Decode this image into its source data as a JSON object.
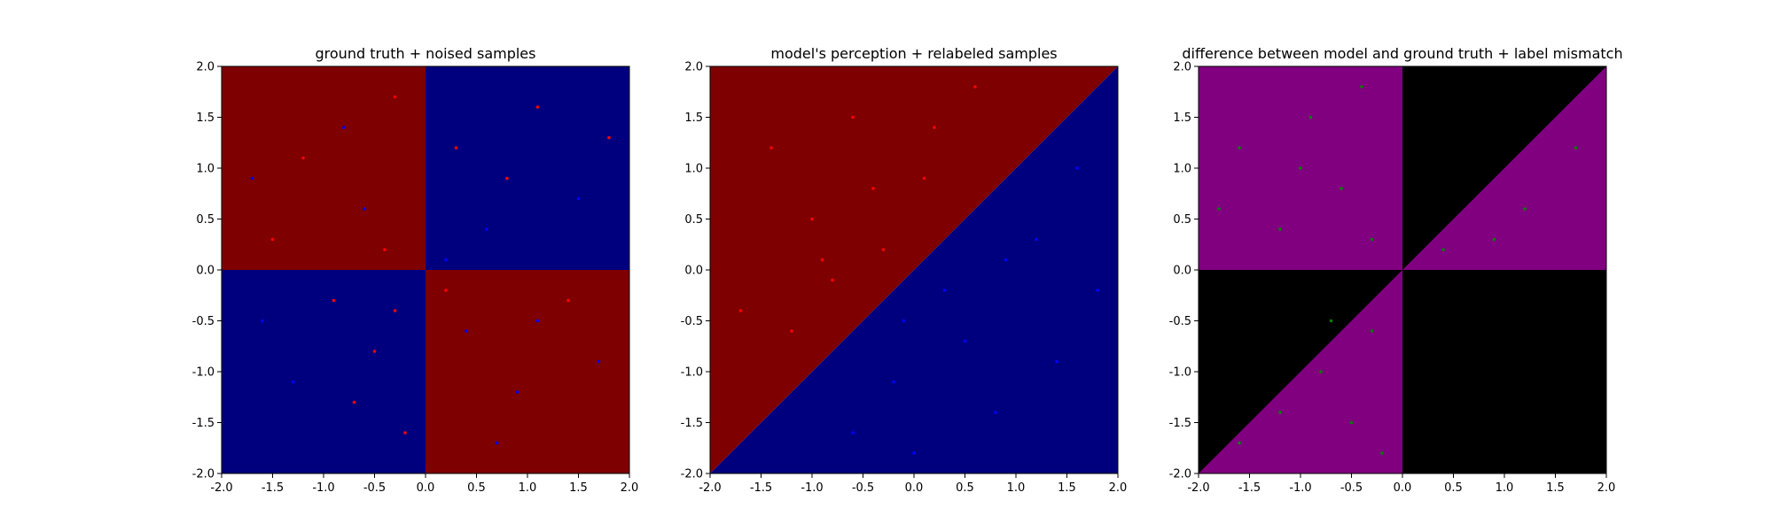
{
  "chart_data": [
    {
      "type": "heatmap",
      "title": "ground truth + noised samples",
      "xlim": [
        -2.0,
        2.0
      ],
      "ylim": [
        -2.0,
        2.0
      ],
      "xticks": [
        "-2.0",
        "-1.5",
        "-1.0",
        "-0.5",
        "0.0",
        "0.5",
        "1.0",
        "1.5",
        "2.0"
      ],
      "yticks": [
        "-2.0",
        "-1.5",
        "-1.0",
        "-0.5",
        "0.0",
        "0.5",
        "1.0",
        "1.5",
        "2.0"
      ],
      "grid": false,
      "regions": [
        {
          "label": "x<0, y>0",
          "color": "#7f0000"
        },
        {
          "label": "x>0, y>0",
          "color": "#00007f"
        },
        {
          "label": "x<0, y<0",
          "color": "#00007f"
        },
        {
          "label": "x>0, y<0",
          "color": "#7f0000"
        }
      ],
      "point_colors": {
        "red": "#ff0000",
        "blue": "#0000ff"
      },
      "scatter_points": [
        {
          "x": -1.2,
          "y": 1.1,
          "c": "red"
        },
        {
          "x": -0.8,
          "y": 1.4,
          "c": "blue"
        },
        {
          "x": -1.5,
          "y": 0.3,
          "c": "red"
        },
        {
          "x": -0.6,
          "y": 0.6,
          "c": "blue"
        },
        {
          "x": -0.3,
          "y": 1.7,
          "c": "red"
        },
        {
          "x": -1.7,
          "y": 0.9,
          "c": "blue"
        },
        {
          "x": -0.4,
          "y": 0.2,
          "c": "red"
        },
        {
          "x": 0.3,
          "y": 1.2,
          "c": "red"
        },
        {
          "x": 0.6,
          "y": 0.4,
          "c": "blue"
        },
        {
          "x": 1.1,
          "y": 1.6,
          "c": "red"
        },
        {
          "x": 1.5,
          "y": 0.7,
          "c": "blue"
        },
        {
          "x": 0.8,
          "y": 0.9,
          "c": "red"
        },
        {
          "x": 0.2,
          "y": 0.1,
          "c": "blue"
        },
        {
          "x": 1.8,
          "y": 1.3,
          "c": "red"
        },
        {
          "x": -0.9,
          "y": -0.3,
          "c": "red"
        },
        {
          "x": -0.5,
          "y": -0.8,
          "c": "red"
        },
        {
          "x": -1.3,
          "y": -1.1,
          "c": "blue"
        },
        {
          "x": -0.2,
          "y": -1.6,
          "c": "red"
        },
        {
          "x": -1.6,
          "y": -0.5,
          "c": "blue"
        },
        {
          "x": -0.7,
          "y": -1.3,
          "c": "red"
        },
        {
          "x": -0.3,
          "y": -0.4,
          "c": "red"
        },
        {
          "x": 0.4,
          "y": -0.6,
          "c": "blue"
        },
        {
          "x": 0.9,
          "y": -1.2,
          "c": "blue"
        },
        {
          "x": 1.4,
          "y": -0.3,
          "c": "red"
        },
        {
          "x": 0.7,
          "y": -1.7,
          "c": "blue"
        },
        {
          "x": 1.7,
          "y": -0.9,
          "c": "blue"
        },
        {
          "x": 0.2,
          "y": -0.2,
          "c": "red"
        },
        {
          "x": 1.1,
          "y": -0.5,
          "c": "blue"
        }
      ]
    },
    {
      "type": "heatmap",
      "title": "model's perception + relabeled samples",
      "xlim": [
        -2.0,
        2.0
      ],
      "ylim": [
        -2.0,
        2.0
      ],
      "xticks": [
        "-2.0",
        "-1.5",
        "-1.0",
        "-0.5",
        "0.0",
        "0.5",
        "1.0",
        "1.5",
        "2.0"
      ],
      "yticks": [
        "-2.0",
        "-1.5",
        "-1.0",
        "-0.5",
        "0.0",
        "0.5",
        "1.0",
        "1.5",
        "2.0"
      ],
      "grid": false,
      "regions": [
        {
          "label": "y>x",
          "color": "#7f0000"
        },
        {
          "label": "y<x",
          "color": "#00007f"
        }
      ],
      "point_colors": {
        "red": "#ff0000",
        "blue": "#0000ff"
      },
      "scatter_points": [
        {
          "x": -1.4,
          "y": 1.2,
          "c": "red"
        },
        {
          "x": -1.0,
          "y": 0.5,
          "c": "red"
        },
        {
          "x": -0.6,
          "y": 1.5,
          "c": "red"
        },
        {
          "x": -0.3,
          "y": 0.2,
          "c": "red"
        },
        {
          "x": -1.7,
          "y": -0.4,
          "c": "red"
        },
        {
          "x": -0.8,
          "y": -0.1,
          "c": "red"
        },
        {
          "x": -0.4,
          "y": 0.8,
          "c": "red"
        },
        {
          "x": 0.2,
          "y": 1.4,
          "c": "red"
        },
        {
          "x": 0.6,
          "y": 1.8,
          "c": "red"
        },
        {
          "x": -1.2,
          "y": -0.6,
          "c": "red"
        },
        {
          "x": 0.1,
          "y": 0.9,
          "c": "red"
        },
        {
          "x": -0.9,
          "y": 0.1,
          "c": "red"
        },
        {
          "x": 0.5,
          "y": -0.7,
          "c": "blue"
        },
        {
          "x": 1.2,
          "y": 0.3,
          "c": "blue"
        },
        {
          "x": 0.8,
          "y": -1.4,
          "c": "blue"
        },
        {
          "x": -0.2,
          "y": -1.1,
          "c": "blue"
        },
        {
          "x": 1.6,
          "y": 1.0,
          "c": "blue"
        },
        {
          "x": 0.3,
          "y": -0.2,
          "c": "blue"
        },
        {
          "x": -0.6,
          "y": -1.6,
          "c": "blue"
        },
        {
          "x": 1.4,
          "y": -0.9,
          "c": "blue"
        },
        {
          "x": 0.9,
          "y": 0.1,
          "c": "blue"
        },
        {
          "x": -0.1,
          "y": -0.5,
          "c": "blue"
        },
        {
          "x": 1.8,
          "y": -0.2,
          "c": "blue"
        },
        {
          "x": 0.0,
          "y": -1.8,
          "c": "blue"
        }
      ]
    },
    {
      "type": "heatmap",
      "title": "difference between model and ground truth + label mismatch",
      "xlim": [
        -2.0,
        2.0
      ],
      "ylim": [
        -2.0,
        2.0
      ],
      "xticks": [
        "-2.0",
        "-1.5",
        "-1.0",
        "-0.5",
        "0.0",
        "0.5",
        "1.0",
        "1.5",
        "2.0"
      ],
      "yticks": [
        "-2.0",
        "-1.5",
        "-1.0",
        "-0.5",
        "0.0",
        "0.5",
        "1.0",
        "1.5",
        "2.0"
      ],
      "grid": false,
      "regions": [
        {
          "label": "mismatch",
          "color": "#800080"
        },
        {
          "label": "match",
          "color": "#000000"
        }
      ],
      "point_colors": {
        "green": "#008000"
      },
      "scatter_points": [
        {
          "x": -1.6,
          "y": 1.2,
          "c": "green"
        },
        {
          "x": -1.2,
          "y": 0.4,
          "c": "green"
        },
        {
          "x": -0.9,
          "y": 1.5,
          "c": "green"
        },
        {
          "x": -0.6,
          "y": 0.8,
          "c": "green"
        },
        {
          "x": -0.3,
          "y": 0.3,
          "c": "green"
        },
        {
          "x": -1.8,
          "y": 0.6,
          "c": "green"
        },
        {
          "x": -0.4,
          "y": 1.8,
          "c": "green"
        },
        {
          "x": -1.0,
          "y": 1.0,
          "c": "green"
        },
        {
          "x": 0.4,
          "y": 0.2,
          "c": "green"
        },
        {
          "x": 1.2,
          "y": 0.6,
          "c": "green"
        },
        {
          "x": 1.7,
          "y": 1.2,
          "c": "green"
        },
        {
          "x": 0.9,
          "y": 0.3,
          "c": "green"
        },
        {
          "x": -0.3,
          "y": -0.6,
          "c": "green"
        },
        {
          "x": -0.8,
          "y": -1.0,
          "c": "green"
        },
        {
          "x": -0.5,
          "y": -1.5,
          "c": "green"
        },
        {
          "x": -1.2,
          "y": -1.4,
          "c": "green"
        },
        {
          "x": -0.2,
          "y": -1.8,
          "c": "green"
        },
        {
          "x": -0.7,
          "y": -0.5,
          "c": "green"
        },
        {
          "x": -1.6,
          "y": -1.7,
          "c": "green"
        }
      ]
    }
  ]
}
